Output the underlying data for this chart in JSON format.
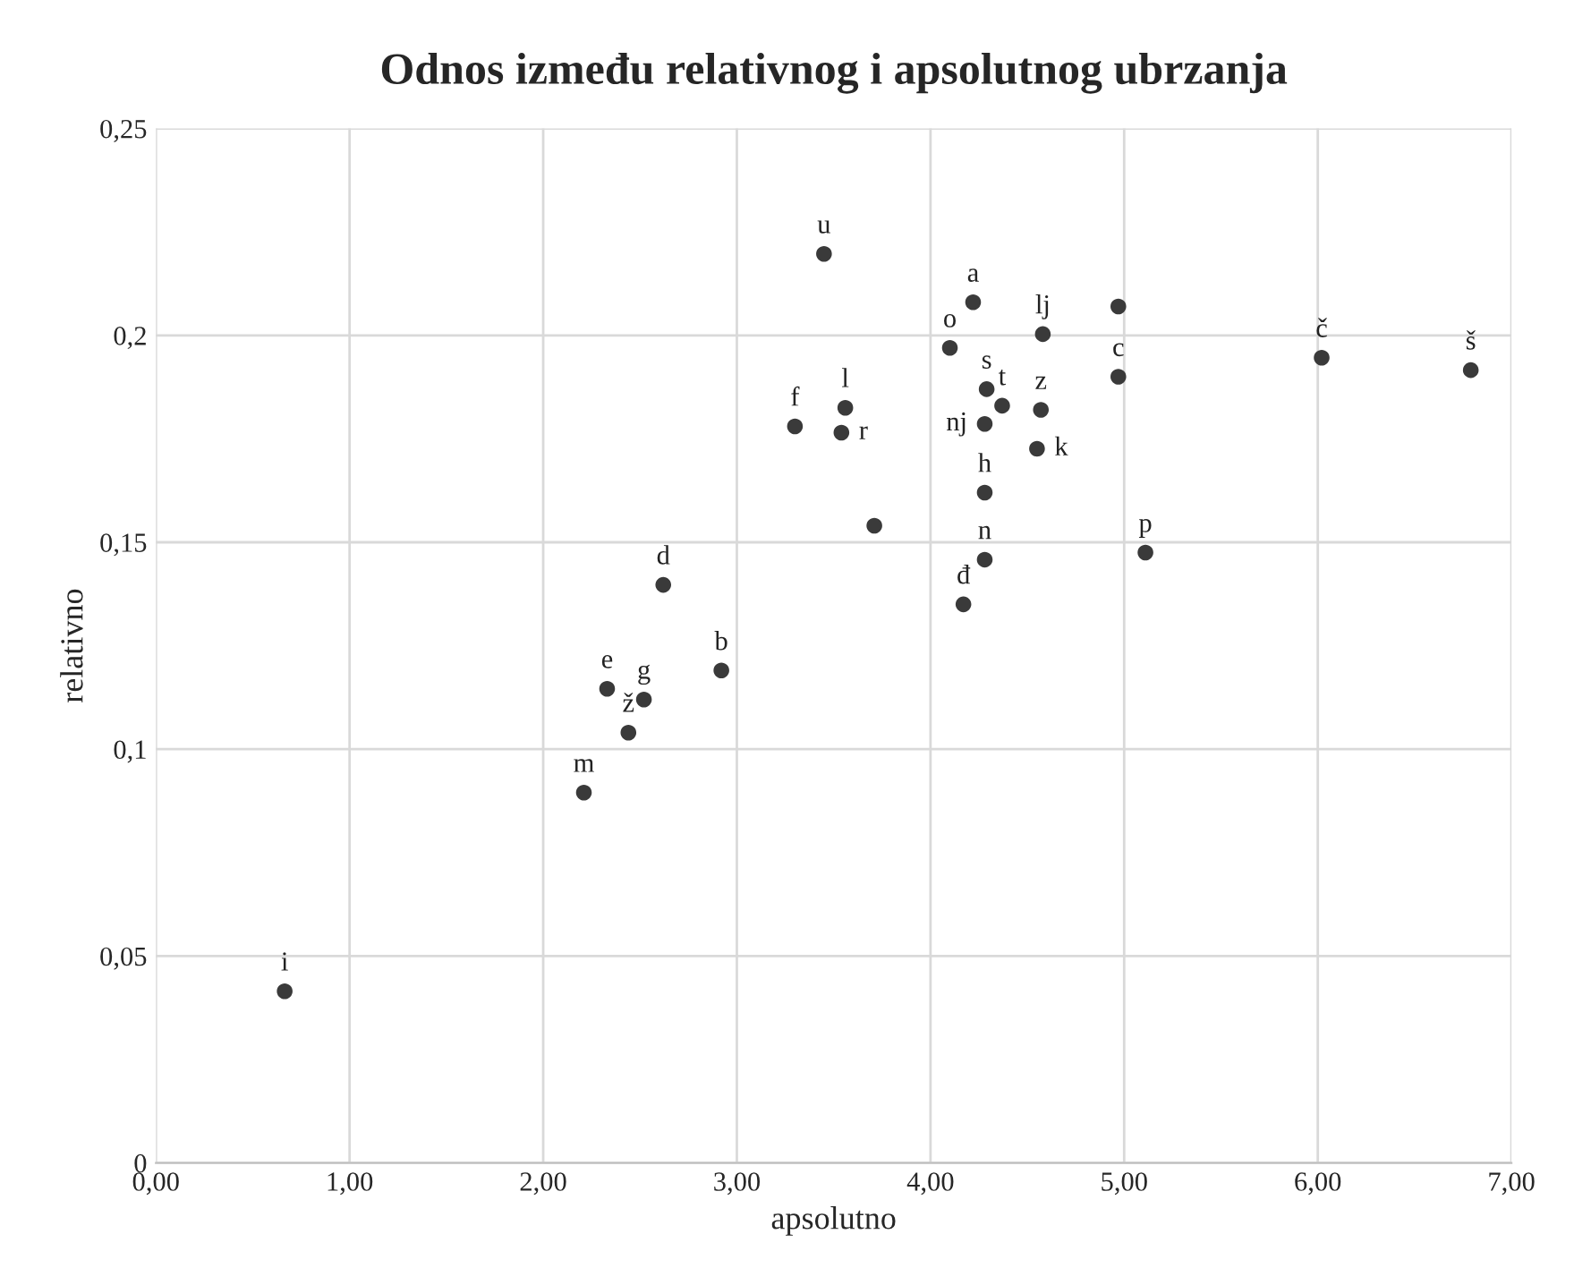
{
  "chart_data": {
    "type": "scatter",
    "title": "Odnos između relativnog i apsolutnog ubrzanja",
    "xlabel": "apsolutno",
    "ylabel": "relativno",
    "series": [
      {
        "color": "#3a3a3a",
        "x": [
          0.665,
          2.21,
          2.44,
          2.33,
          2.52,
          2.92,
          2.62,
          3.3,
          3.56,
          3.54,
          3.45,
          3.71,
          4.1,
          4.22,
          4.29,
          4.37,
          4.28,
          4.28,
          4.28,
          4.17,
          4.58,
          4.57,
          4.55,
          4.97,
          4.97,
          5.11,
          6.02,
          6.79
        ],
        "values": [
          0.0415,
          0.0895,
          0.104,
          0.1146,
          0.112,
          0.119,
          0.1397,
          0.178,
          0.1825,
          0.1765,
          0.2197,
          0.154,
          0.197,
          0.208,
          0.187,
          0.183,
          0.1786,
          0.162,
          0.1458,
          0.135,
          0.2003,
          0.182,
          0.1726,
          0.207,
          0.19,
          0.1475,
          0.1946,
          0.1916
        ]
      }
    ],
    "annotations": [
      {
        "text": "i",
        "x": 0.665,
        "y": 0.0415
      },
      {
        "text": "m",
        "x": 2.21,
        "y": 0.0895
      },
      {
        "text": "ž",
        "x": 2.44,
        "y": 0.104
      },
      {
        "text": "e",
        "x": 2.33,
        "y": 0.1146
      },
      {
        "text": "g",
        "x": 2.52,
        "y": 0.112
      },
      {
        "text": "b",
        "x": 2.92,
        "y": 0.119
      },
      {
        "text": "d",
        "x": 2.62,
        "y": 0.1397
      },
      {
        "text": "f",
        "x": 3.3,
        "y": 0.178
      },
      {
        "text": "l",
        "x": 3.56,
        "y": 0.1825
      },
      {
        "text": "r",
        "x": 3.54,
        "y": 0.1765
      },
      {
        "text": "u",
        "x": 3.45,
        "y": 0.2197
      },
      {
        "text": "o",
        "x": 4.1,
        "y": 0.197
      },
      {
        "text": "a",
        "x": 4.22,
        "y": 0.208
      },
      {
        "text": "s",
        "x": 4.29,
        "y": 0.187
      },
      {
        "text": "t",
        "x": 4.37,
        "y": 0.183
      },
      {
        "text": "nj",
        "x": 4.28,
        "y": 0.1786
      },
      {
        "text": "h",
        "x": 4.28,
        "y": 0.162
      },
      {
        "text": "n",
        "x": 4.28,
        "y": 0.1458
      },
      {
        "text": "đ",
        "x": 4.17,
        "y": 0.135
      },
      {
        "text": "lj",
        "x": 4.58,
        "y": 0.2003
      },
      {
        "text": "z",
        "x": 4.57,
        "y": 0.182
      },
      {
        "text": "k",
        "x": 4.55,
        "y": 0.1726
      },
      {
        "text": "c",
        "x": 4.97,
        "y": 0.19
      },
      {
        "text": "p",
        "x": 5.11,
        "y": 0.1475
      },
      {
        "text": "č",
        "x": 6.02,
        "y": 0.1946
      },
      {
        "text": "š",
        "x": 6.79,
        "y": 0.1916
      }
    ],
    "xlim": [
      0,
      7
    ],
    "ylim": [
      0,
      0.25
    ],
    "xticks": [
      {
        "value": 0,
        "label": "0,00"
      },
      {
        "value": 1,
        "label": "1,00"
      },
      {
        "value": 2,
        "label": "2,00"
      },
      {
        "value": 3,
        "label": "3,00"
      },
      {
        "value": 4,
        "label": "4,00"
      },
      {
        "value": 5,
        "label": "5,00"
      },
      {
        "value": 6,
        "label": "6,00"
      },
      {
        "value": 7,
        "label": "7,00"
      }
    ],
    "yticks": [
      0,
      {
        "value": 0.05,
        "label": "0,05"
      },
      {
        "value": 0.1,
        "label": "0,1"
      },
      {
        "value": 0.15,
        "label": "0,15"
      },
      {
        "value": 0.2,
        "label": "0,2"
      },
      {
        "value": 0.25,
        "label": "0,25"
      }
    ],
    "grid": true,
    "marker": "circle"
  }
}
